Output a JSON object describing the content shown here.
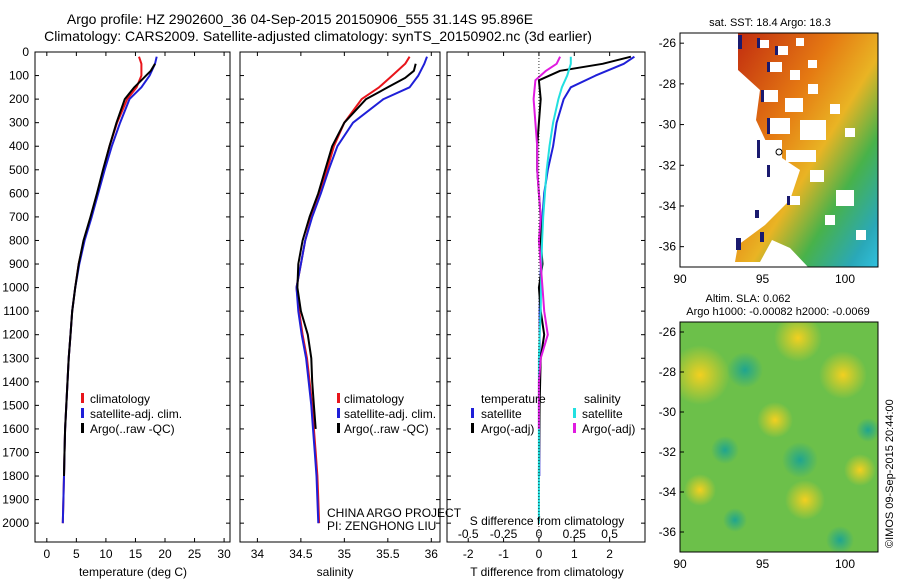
{
  "header": {
    "title_line1": "Argo profile: HZ 2902600_36 04-Sep-2015 20150906_555 31.14S 95.896E",
    "title_line2": "Climatology: CARS2009. Satellite-adjusted climatology: synTS_20150902.nc (3d earlier)"
  },
  "colors": {
    "climatology": "#e8151b",
    "satellite": "#1f1fd8",
    "argo": "#000000",
    "argo_salinity": "#e01be0",
    "satellite_salinity": "#22e0e0"
  },
  "chart_data": [
    {
      "type": "line",
      "xlabel": "temperature (deg C)",
      "ylabel": "",
      "xlim": [
        -2,
        31
      ],
      "ylim": [
        2080,
        0
      ],
      "xticks": [
        "0",
        "5",
        "10",
        "15",
        "20",
        "25",
        "30"
      ],
      "yticks": [
        "0",
        "100",
        "200",
        "300",
        "400",
        "500",
        "600",
        "700",
        "800",
        "900",
        "1000",
        "1100",
        "1200",
        "1300",
        "1400",
        "1500",
        "1600",
        "1700",
        "1800",
        "1900",
        "2000"
      ],
      "legend": [
        "climatology",
        "satellite-adj. clim.",
        "Argo(..raw -QC)"
      ],
      "series": [
        {
          "name": "climatology",
          "color": "#e8151b",
          "x": [
            15.6,
            16.0,
            16.0,
            15.2,
            13.6,
            11.9,
            10.6,
            9.6,
            8.6,
            7.5,
            6.3,
            5.4,
            4.8,
            4.3,
            4.0,
            3.7,
            3.5,
            3.3,
            3.1,
            3.0,
            2.9,
            2.8,
            2.7
          ],
          "y": [
            20,
            50,
            100,
            150,
            200,
            300,
            400,
            500,
            600,
            700,
            800,
            900,
            1000,
            1100,
            1200,
            1300,
            1400,
            1500,
            1600,
            1700,
            1800,
            1900,
            2000
          ]
        },
        {
          "name": "satellite-adj. clim.",
          "color": "#1f1fd8",
          "x": [
            18.6,
            18.3,
            17.4,
            16.0,
            14.0,
            12.4,
            11.0,
            9.8,
            8.7,
            7.6,
            6.4,
            5.5,
            4.8,
            4.3,
            4.0,
            3.7,
            3.5,
            3.3,
            3.1,
            3.0,
            2.9,
            2.8,
            2.7
          ],
          "y": [
            20,
            50,
            100,
            150,
            200,
            300,
            400,
            500,
            600,
            700,
            800,
            900,
            1000,
            1100,
            1200,
            1300,
            1400,
            1500,
            1600,
            1700,
            1800,
            1900,
            2000
          ]
        },
        {
          "name": "Argo(..raw -QC)",
          "color": "#000000",
          "x": [
            18.3,
            17.6,
            16.4,
            14.8,
            13.2,
            11.8,
            10.6,
            9.5,
            8.5,
            7.4,
            6.2,
            5.4,
            4.8,
            4.3,
            4.0,
            3.7,
            3.5,
            3.3,
            3.1,
            3.0,
            2.9
          ],
          "y": [
            50,
            80,
            110,
            150,
            200,
            300,
            400,
            500,
            600,
            700,
            800,
            900,
            1000,
            1100,
            1200,
            1300,
            1400,
            1500,
            1600,
            1700,
            1800
          ]
        }
      ]
    },
    {
      "type": "line",
      "xlabel": "salinity",
      "xlim": [
        33.8,
        36.1
      ],
      "ylim": [
        2080,
        0
      ],
      "xticks": [
        "34",
        "34.5",
        "35",
        "35.5",
        "36"
      ],
      "legend": [
        "climatology",
        "satellite-adj. clim.",
        "Argo(..raw -QC)"
      ],
      "series": [
        {
          "name": "climatology",
          "color": "#e8151b",
          "x": [
            35.75,
            35.7,
            35.55,
            35.4,
            35.2,
            35.0,
            34.88,
            34.8,
            34.72,
            34.62,
            34.55,
            34.5,
            34.45,
            34.48,
            34.52,
            34.57,
            34.6,
            34.63,
            34.65,
            34.67,
            34.69,
            34.7,
            34.71
          ],
          "y": [
            20,
            50,
            100,
            150,
            200,
            300,
            400,
            500,
            600,
            700,
            800,
            900,
            1000,
            1100,
            1200,
            1300,
            1400,
            1500,
            1600,
            1700,
            1800,
            1900,
            2000
          ]
        },
        {
          "name": "satellite-adj. clim.",
          "color": "#1f1fd8",
          "x": [
            35.95,
            35.92,
            35.85,
            35.75,
            35.45,
            35.1,
            34.92,
            34.82,
            34.73,
            34.63,
            34.55,
            34.5,
            34.45,
            34.47,
            34.51,
            34.56,
            34.59,
            34.62,
            34.64,
            34.66,
            34.68,
            34.69,
            34.7
          ],
          "y": [
            20,
            50,
            100,
            150,
            200,
            300,
            400,
            500,
            600,
            700,
            800,
            900,
            1000,
            1100,
            1200,
            1300,
            1400,
            1500,
            1600,
            1700,
            1800,
            1900,
            2000
          ]
        },
        {
          "name": "Argo(..raw -QC)",
          "color": "#000000",
          "x": [
            35.82,
            35.8,
            35.7,
            35.5,
            35.25,
            35.0,
            34.86,
            34.78,
            34.7,
            34.6,
            34.52,
            34.47,
            34.46,
            34.5,
            34.58,
            34.62,
            34.63,
            34.65,
            34.67
          ],
          "y": [
            50,
            80,
            110,
            150,
            200,
            300,
            400,
            500,
            600,
            700,
            800,
            900,
            1000,
            1100,
            1200,
            1300,
            1400,
            1500,
            1600
          ]
        }
      ]
    },
    {
      "type": "line",
      "xlabel": "T difference from climatology",
      "xlabel_top": "S difference from climatology",
      "xlim": [
        -2.6,
        3.0
      ],
      "ylim": [
        2080,
        0
      ],
      "xticks": [
        "-2",
        "-1",
        "0",
        "1",
        "2"
      ],
      "xticks_top": [
        "-0.5",
        "-0.25",
        "0",
        "0.25",
        "0.5"
      ],
      "legend_headers": [
        "temperature",
        "salinity"
      ],
      "legend": [
        "satellite",
        "Argo(-adj)",
        "satellite",
        "Argo(-adj)"
      ],
      "series": [
        {
          "name": "satellite",
          "group": "temperature",
          "color": "#1f1fd8",
          "x": [
            2.7,
            2.4,
            1.6,
            0.9,
            0.7,
            0.5,
            0.4,
            0.25,
            0.15,
            0.1,
            0.08,
            0.06,
            0.03,
            0.02,
            0.02,
            0.02,
            0.01,
            0.01,
            0.01,
            0.01
          ],
          "y": [
            20,
            50,
            100,
            150,
            200,
            300,
            400,
            500,
            600,
            700,
            800,
            900,
            1000,
            1100,
            1200,
            1300,
            1400,
            1500,
            1600,
            1800
          ]
        },
        {
          "name": "Argo(-adj)",
          "group": "temperature",
          "color": "#000000",
          "x": [
            2.6,
            1.8,
            0.6,
            0.0,
            0.05,
            0.0,
            -0.05,
            -0.05,
            0.0,
            0.05,
            0.05,
            0.1,
            0.0,
            0.05,
            0.15,
            0.05,
            0.02,
            0.0
          ],
          "y": [
            20,
            50,
            80,
            120,
            200,
            300,
            400,
            500,
            600,
            700,
            800,
            900,
            1000,
            1100,
            1200,
            1300,
            1500,
            1800
          ]
        },
        {
          "name": "satellite",
          "group": "salinity",
          "color": "#22e0e0",
          "x": [
            0.9,
            0.9,
            0.8,
            0.65,
            0.55,
            0.4,
            0.3,
            0.22,
            0.17,
            0.12,
            0.09,
            0.07,
            0.06,
            0.05,
            0.02,
            0.0,
            0.0,
            0.0,
            0.0,
            0.0
          ],
          "y": [
            20,
            50,
            100,
            150,
            200,
            300,
            400,
            500,
            600,
            700,
            800,
            900,
            1000,
            1100,
            1200,
            1300,
            1400,
            1600,
            1800,
            2000
          ]
        },
        {
          "name": "Argo(-adj)",
          "group": "salinity",
          "color": "#e01be0",
          "x": [
            0.6,
            0.5,
            0.2,
            -0.1,
            -0.15,
            -0.1,
            -0.05,
            -0.05,
            0.0,
            0.05,
            0.0,
            0.05,
            0.1,
            0.15,
            0.25,
            0.05,
            0.0,
            0.0,
            0.0
          ],
          "y": [
            20,
            50,
            80,
            120,
            200,
            300,
            400,
            500,
            600,
            700,
            800,
            900,
            1000,
            1100,
            1200,
            1300,
            1400,
            1500,
            1600
          ]
        }
      ]
    },
    {
      "type": "heatmap",
      "title": "sat. SST: 18.4 Argo: 18.3",
      "xlim": [
        90,
        102
      ],
      "ylim": [
        -37,
        -25.5
      ],
      "xticks": [
        "90",
        "95",
        "100"
      ],
      "yticks": [
        "-26",
        "-28",
        "-30",
        "-32",
        "-34",
        "-36"
      ]
    },
    {
      "type": "heatmap",
      "title": "Altim. SLA: 0.062",
      "subtitle": "Argo h1000: -0.00082 h2000: -0.0069",
      "xlim": [
        90,
        102
      ],
      "ylim": [
        -37,
        -25.5
      ],
      "xticks": [
        "90",
        "95",
        "100"
      ],
      "yticks": [
        "-26",
        "-28",
        "-30",
        "-32",
        "-34",
        "-36"
      ]
    }
  ],
  "annotations": {
    "project_line1": "CHINA ARGO PROJECT",
    "project_line2": "PI: ZENGHONG LIU",
    "side_label": "©IMOS 09-Sep-2015 20:44:00"
  }
}
